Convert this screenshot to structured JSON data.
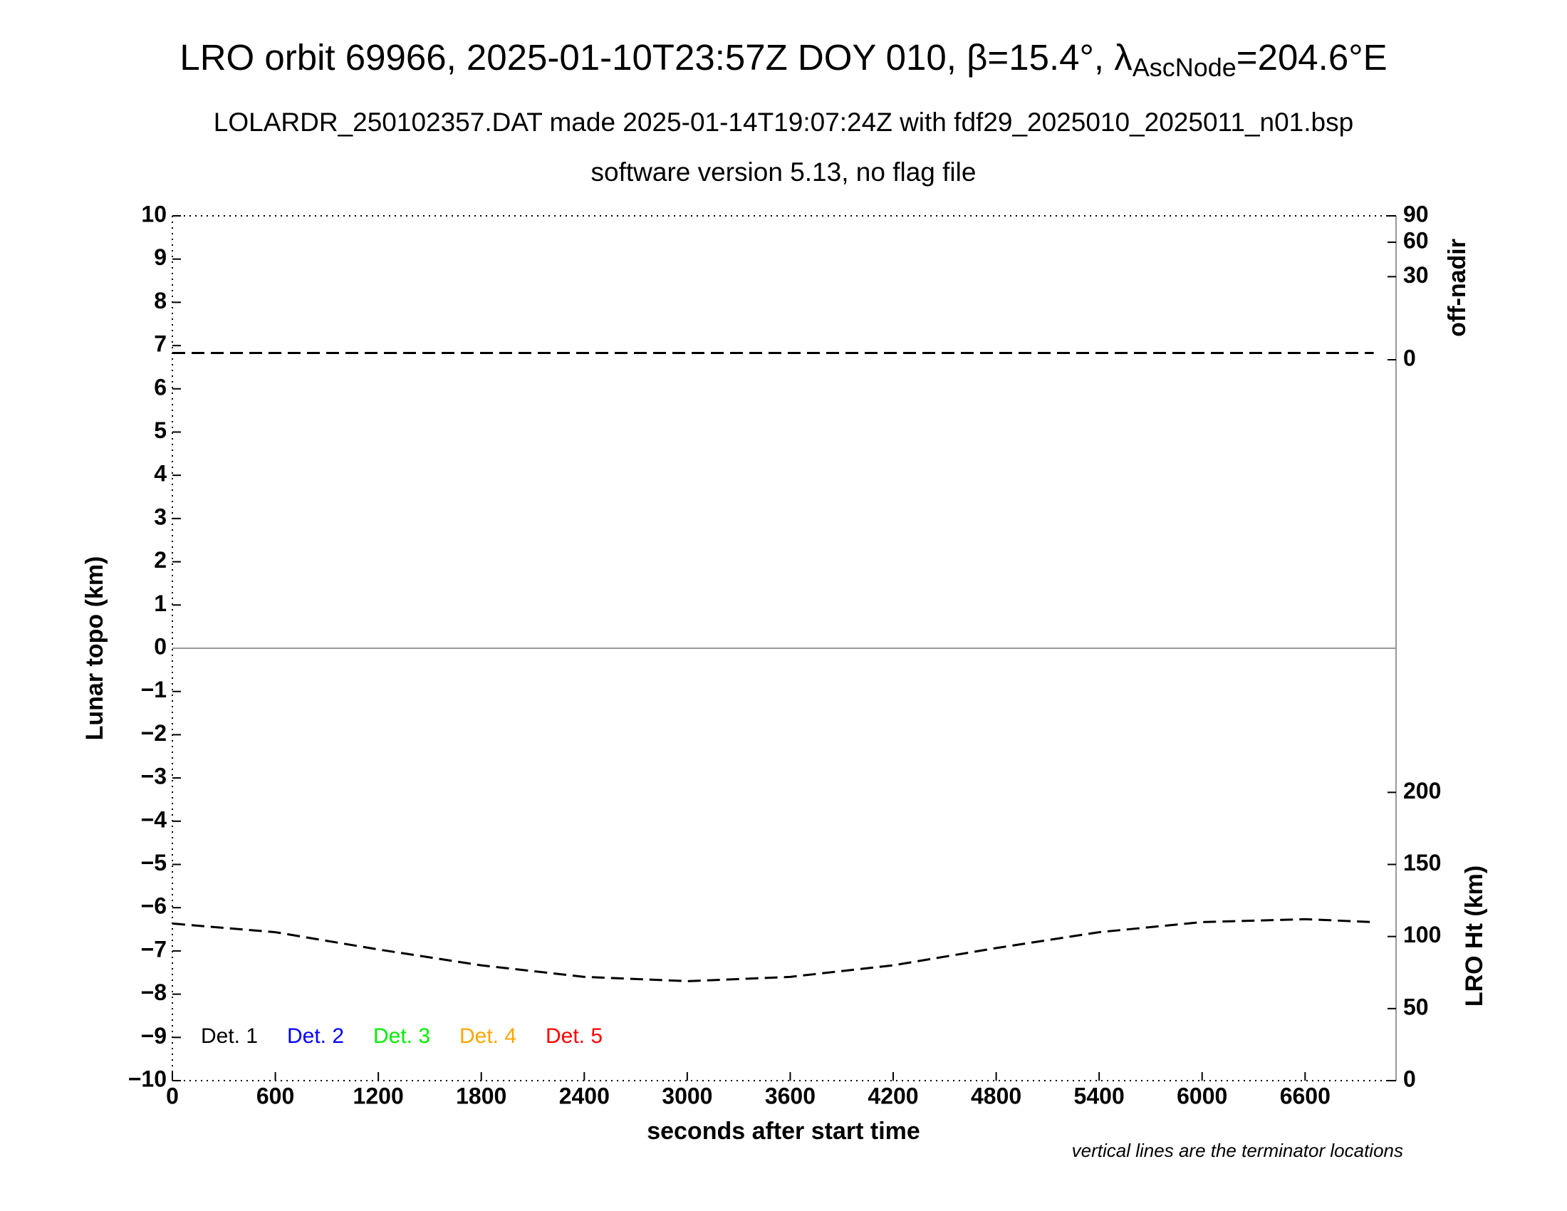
{
  "chart_data": {
    "type": "line",
    "title": {
      "text": "LRO orbit 69966, 2025-01-10T23:57Z DOY 010, β=15.4°, λ",
      "subscript": "AscNode",
      "suffix": "=204.6°E"
    },
    "subtitle": "LOLARDR_250102357.DAT made 2025-01-14T19:07:24Z with fdf29_2025010_2025011_n01.bsp",
    "subtitle2": "software version 5.13, no flag file",
    "xlabel": "seconds after start time",
    "ylabel": "Lunar topo (km)",
    "y2label": "LRO Ht (km)",
    "y3label": "off-nadir",
    "annotation": "vertical lines are the terminator locations",
    "xlim": [
      0,
      7130
    ],
    "xticks": [
      0,
      600,
      1200,
      1800,
      2400,
      3000,
      3600,
      4200,
      4800,
      5400,
      6000,
      6600
    ],
    "ylim": [
      -10,
      10
    ],
    "yticks": [
      {
        "value": -10,
        "label": "−10"
      },
      {
        "value": -9,
        "label": "−9"
      },
      {
        "value": -8,
        "label": "−8"
      },
      {
        "value": -7,
        "label": "−7"
      },
      {
        "value": -6,
        "label": "−6"
      },
      {
        "value": -5,
        "label": "−5"
      },
      {
        "value": -4,
        "label": "−4"
      },
      {
        "value": -3,
        "label": "−3"
      },
      {
        "value": -2,
        "label": "−2"
      },
      {
        "value": -1,
        "label": "−1"
      },
      0,
      1,
      2,
      3,
      4,
      5,
      6,
      7,
      8,
      9,
      10
    ],
    "y2lim": [
      0,
      600
    ],
    "y2ticks": [
      0,
      50,
      100,
      150,
      200
    ],
    "y3lim": [
      0,
      90
    ],
    "y3scale": "sqrt",
    "y3ticks": [
      0,
      30,
      60,
      90
    ],
    "x": [
      0,
      600,
      1200,
      1800,
      2400,
      3000,
      3600,
      4200,
      4800,
      5400,
      6000,
      6600,
      7000
    ],
    "series": [
      {
        "axis": "y3",
        "color": "#000000",
        "dash": true,
        "values": [
          0.2,
          0.2,
          0.2,
          0.2,
          0.2,
          0.2,
          0.2,
          0.2,
          0.2,
          0.2,
          0.2,
          0.2,
          0.2
        ]
      },
      {
        "axis": "y2",
        "color": "#000000",
        "dash": true,
        "values": [
          109,
          103,
          91,
          80,
          72,
          69,
          72,
          80,
          92,
          103,
          110,
          112,
          110
        ]
      }
    ],
    "detectors": [
      {
        "name": "Det. 1",
        "color": "#000000"
      },
      {
        "name": "Det. 2",
        "color": "#0000ff"
      },
      {
        "name": "Det. 3",
        "color": "#00ee00"
      },
      {
        "name": "Det. 4",
        "color": "#ffa500"
      },
      {
        "name": "Det. 5",
        "color": "#ff0000"
      }
    ],
    "zero_line": true
  }
}
